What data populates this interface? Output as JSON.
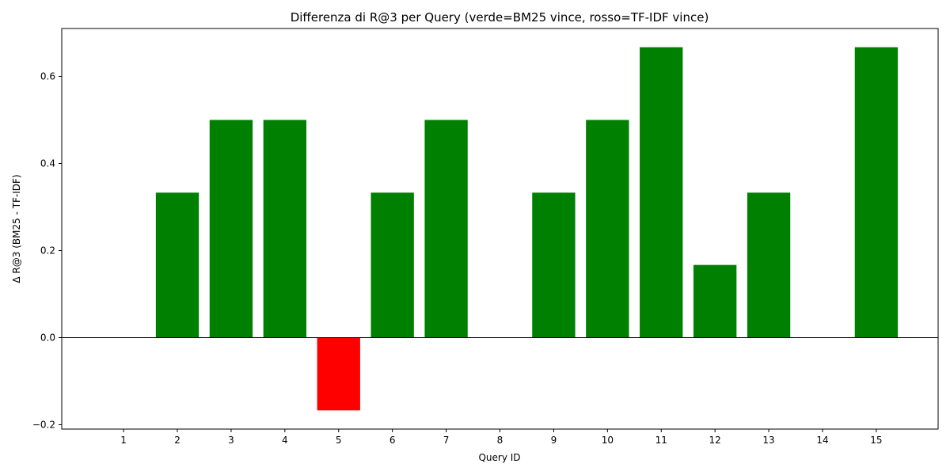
{
  "chart_data": {
    "type": "bar",
    "title": "Differenza di R@3 per Query (verde=BM25 vince, rosso=TF-IDF vince)",
    "xlabel": "Query ID",
    "ylabel": "Δ R@3 (BM25 - TF-IDF)",
    "categories": [
      "1",
      "2",
      "3",
      "4",
      "5",
      "6",
      "7",
      "8",
      "9",
      "10",
      "11",
      "12",
      "13",
      "14",
      "15"
    ],
    "values": [
      0,
      0.333,
      0.5,
      0.5,
      -0.167,
      0.333,
      0.5,
      0,
      0.333,
      0.5,
      0.667,
      0.167,
      0.333,
      0,
      0.667
    ],
    "ylim": [
      -0.21,
      0.71
    ],
    "yticks": [
      -0.2,
      0.0,
      0.2,
      0.4,
      0.6
    ],
    "ytick_labels": [
      "−0.2",
      "0.0",
      "0.2",
      "0.4",
      "0.6"
    ],
    "grid": false,
    "colors": {
      "positive": "#008000",
      "negative": "#ff0000",
      "zero_line": "#000000"
    }
  }
}
